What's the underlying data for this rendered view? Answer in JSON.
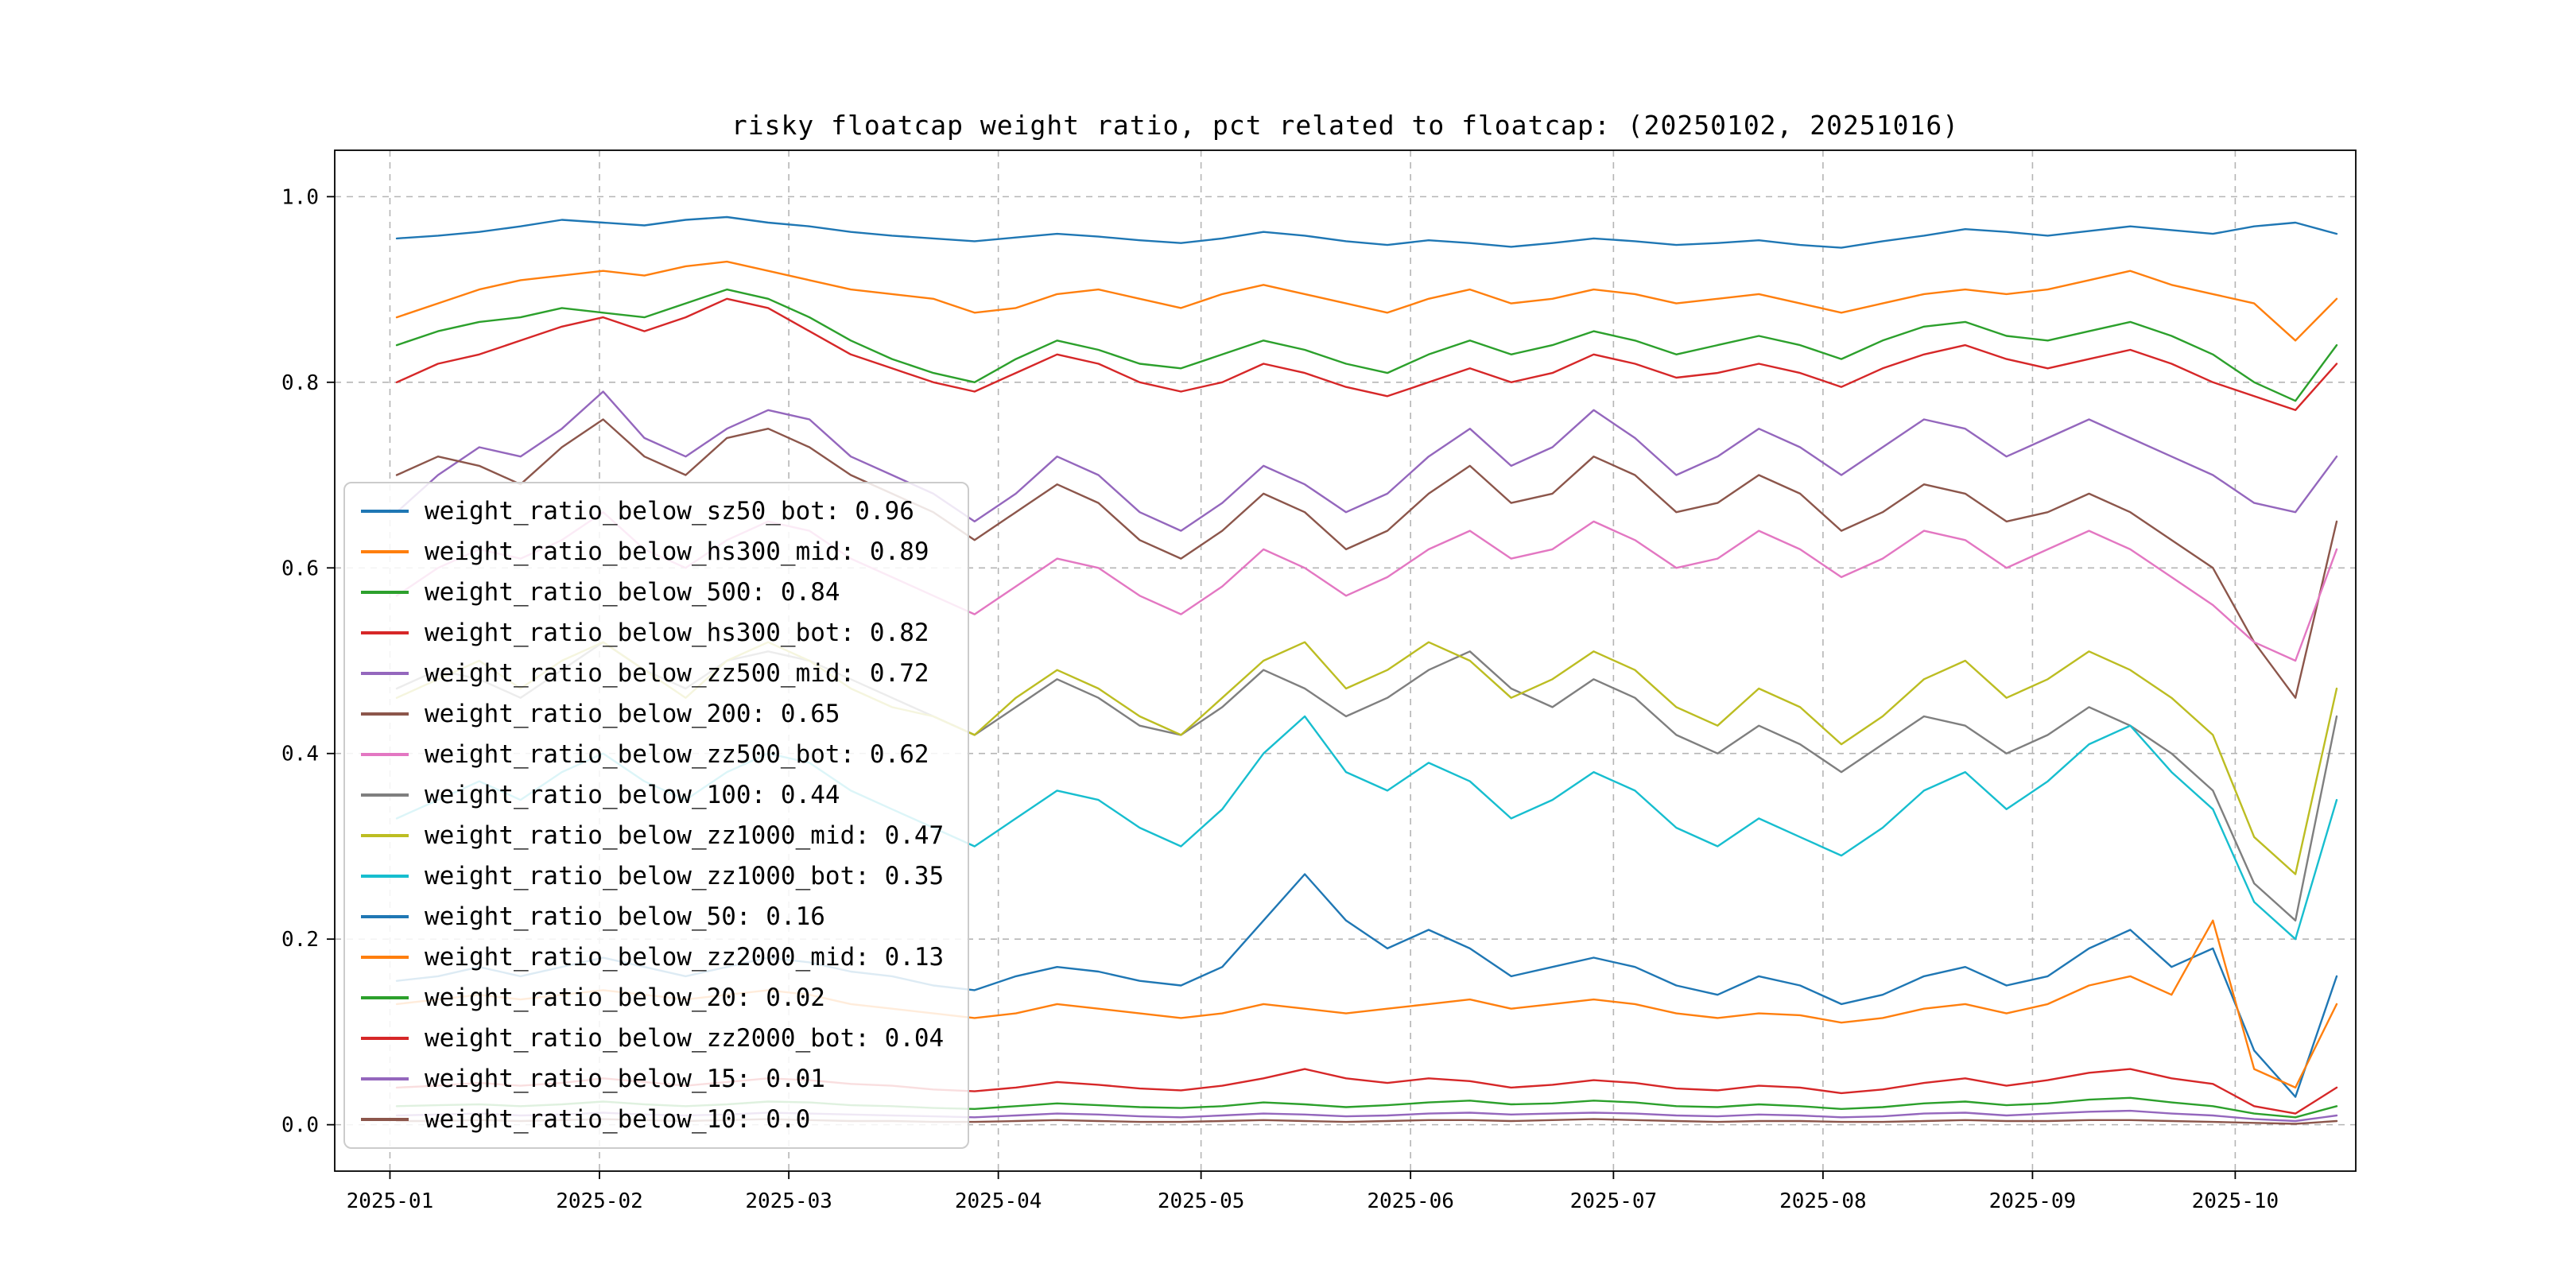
{
  "page": {
    "background": "#ffffff"
  },
  "chart_data": {
    "type": "line",
    "title": "risky floatcap weight ratio, pct related to floatcap: (20250102, 20251016)",
    "xlabel": "",
    "ylabel": "",
    "grid": true,
    "grid_style": "dashed",
    "grid_color": "#b5b5b5",
    "legend_position": "center-left",
    "ylim": [
      -0.05,
      1.05
    ],
    "yticks": [
      {
        "v": 0.0,
        "label": "0.0"
      },
      {
        "v": 0.2,
        "label": "0.2"
      },
      {
        "v": 0.4,
        "label": "0.4"
      },
      {
        "v": 0.6,
        "label": "0.6"
      },
      {
        "v": 0.8,
        "label": "0.8"
      },
      {
        "v": 1.0,
        "label": "1.0"
      }
    ],
    "xticks": [
      {
        "f": -0.0035,
        "label": "2025-01"
      },
      {
        "f": 0.1045,
        "label": "2025-02"
      },
      {
        "f": 0.2021,
        "label": "2025-03"
      },
      {
        "f": 0.3101,
        "label": "2025-04"
      },
      {
        "f": 0.4146,
        "label": "2025-05"
      },
      {
        "f": 0.5226,
        "label": "2025-06"
      },
      {
        "f": 0.6272,
        "label": "2025-07"
      },
      {
        "f": 0.7352,
        "label": "2025-08"
      },
      {
        "f": 0.8432,
        "label": "2025-09"
      },
      {
        "f": 0.9477,
        "label": "2025-10"
      }
    ],
    "date_range": [
      "20250102",
      "20251016"
    ],
    "series": [
      {
        "name": "weight_ratio_below_sz50_bot",
        "legend": "weight_ratio_below_sz50_bot: 0.96",
        "last_value": 0.96,
        "color": "#1f77b4",
        "values": [
          0.955,
          0.958,
          0.962,
          0.968,
          0.975,
          0.972,
          0.969,
          0.975,
          0.978,
          0.972,
          0.968,
          0.962,
          0.958,
          0.955,
          0.952,
          0.956,
          0.96,
          0.957,
          0.953,
          0.95,
          0.955,
          0.962,
          0.958,
          0.952,
          0.948,
          0.953,
          0.95,
          0.946,
          0.95,
          0.955,
          0.952,
          0.948,
          0.95,
          0.953,
          0.948,
          0.945,
          0.952,
          0.958,
          0.965,
          0.962,
          0.958,
          0.963,
          0.968,
          0.964,
          0.96,
          0.968,
          0.972,
          0.96
        ]
      },
      {
        "name": "weight_ratio_below_hs300_mid",
        "legend": "weight_ratio_below_hs300_mid: 0.89",
        "last_value": 0.89,
        "color": "#ff7f0e",
        "values": [
          0.87,
          0.885,
          0.9,
          0.91,
          0.915,
          0.92,
          0.915,
          0.925,
          0.93,
          0.92,
          0.91,
          0.9,
          0.895,
          0.89,
          0.875,
          0.88,
          0.895,
          0.9,
          0.89,
          0.88,
          0.895,
          0.905,
          0.895,
          0.885,
          0.875,
          0.89,
          0.9,
          0.885,
          0.89,
          0.9,
          0.895,
          0.885,
          0.89,
          0.895,
          0.885,
          0.875,
          0.885,
          0.895,
          0.9,
          0.895,
          0.9,
          0.91,
          0.92,
          0.905,
          0.895,
          0.885,
          0.845,
          0.89
        ]
      },
      {
        "name": "weight_ratio_below_500",
        "legend": "weight_ratio_below_500: 0.84",
        "last_value": 0.84,
        "color": "#2ca02c",
        "values": [
          0.84,
          0.855,
          0.865,
          0.87,
          0.88,
          0.875,
          0.87,
          0.885,
          0.9,
          0.89,
          0.87,
          0.845,
          0.825,
          0.81,
          0.8,
          0.825,
          0.845,
          0.835,
          0.82,
          0.815,
          0.83,
          0.845,
          0.835,
          0.82,
          0.81,
          0.83,
          0.845,
          0.83,
          0.84,
          0.855,
          0.845,
          0.83,
          0.84,
          0.85,
          0.84,
          0.825,
          0.845,
          0.86,
          0.865,
          0.85,
          0.845,
          0.855,
          0.865,
          0.85,
          0.83,
          0.8,
          0.78,
          0.84
        ]
      },
      {
        "name": "weight_ratio_below_hs300_bot",
        "legend": "weight_ratio_below_hs300_bot: 0.82",
        "last_value": 0.82,
        "color": "#d62728",
        "values": [
          0.8,
          0.82,
          0.83,
          0.845,
          0.86,
          0.87,
          0.855,
          0.87,
          0.89,
          0.88,
          0.855,
          0.83,
          0.815,
          0.8,
          0.79,
          0.81,
          0.83,
          0.82,
          0.8,
          0.79,
          0.8,
          0.82,
          0.81,
          0.795,
          0.785,
          0.8,
          0.815,
          0.8,
          0.81,
          0.83,
          0.82,
          0.805,
          0.81,
          0.82,
          0.81,
          0.795,
          0.815,
          0.83,
          0.84,
          0.825,
          0.815,
          0.825,
          0.835,
          0.82,
          0.8,
          0.785,
          0.77,
          0.82
        ]
      },
      {
        "name": "weight_ratio_below_zz500_mid",
        "legend": "weight_ratio_below_zz500_mid: 0.72",
        "last_value": 0.72,
        "color": "#9467bd",
        "values": [
          0.66,
          0.7,
          0.73,
          0.72,
          0.75,
          0.79,
          0.74,
          0.72,
          0.75,
          0.77,
          0.76,
          0.72,
          0.7,
          0.68,
          0.65,
          0.68,
          0.72,
          0.7,
          0.66,
          0.64,
          0.67,
          0.71,
          0.69,
          0.66,
          0.68,
          0.72,
          0.75,
          0.71,
          0.73,
          0.77,
          0.74,
          0.7,
          0.72,
          0.75,
          0.73,
          0.7,
          0.73,
          0.76,
          0.75,
          0.72,
          0.74,
          0.76,
          0.74,
          0.72,
          0.7,
          0.67,
          0.66,
          0.72
        ]
      },
      {
        "name": "weight_ratio_below_200",
        "legend": "weight_ratio_below_200: 0.65",
        "last_value": 0.65,
        "color": "#8c564b",
        "values": [
          0.7,
          0.72,
          0.71,
          0.69,
          0.73,
          0.76,
          0.72,
          0.7,
          0.74,
          0.75,
          0.73,
          0.7,
          0.68,
          0.66,
          0.63,
          0.66,
          0.69,
          0.67,
          0.63,
          0.61,
          0.64,
          0.68,
          0.66,
          0.62,
          0.64,
          0.68,
          0.71,
          0.67,
          0.68,
          0.72,
          0.7,
          0.66,
          0.67,
          0.7,
          0.68,
          0.64,
          0.66,
          0.69,
          0.68,
          0.65,
          0.66,
          0.68,
          0.66,
          0.63,
          0.6,
          0.52,
          0.46,
          0.65
        ]
      },
      {
        "name": "weight_ratio_below_zz500_bot",
        "legend": "weight_ratio_below_zz500_bot: 0.62",
        "last_value": 0.62,
        "color": "#e377c2",
        "values": [
          0.57,
          0.6,
          0.62,
          0.61,
          0.63,
          0.66,
          0.62,
          0.6,
          0.63,
          0.65,
          0.64,
          0.61,
          0.59,
          0.57,
          0.55,
          0.58,
          0.61,
          0.6,
          0.57,
          0.55,
          0.58,
          0.62,
          0.6,
          0.57,
          0.59,
          0.62,
          0.64,
          0.61,
          0.62,
          0.65,
          0.63,
          0.6,
          0.61,
          0.64,
          0.62,
          0.59,
          0.61,
          0.64,
          0.63,
          0.6,
          0.62,
          0.64,
          0.62,
          0.59,
          0.56,
          0.52,
          0.5,
          0.62
        ]
      },
      {
        "name": "weight_ratio_below_100",
        "legend": "weight_ratio_below_100: 0.44",
        "last_value": 0.44,
        "color": "#7f7f7f",
        "values": [
          0.47,
          0.49,
          0.48,
          0.46,
          0.49,
          0.52,
          0.49,
          0.47,
          0.5,
          0.51,
          0.5,
          0.48,
          0.46,
          0.44,
          0.42,
          0.45,
          0.48,
          0.46,
          0.43,
          0.42,
          0.45,
          0.49,
          0.47,
          0.44,
          0.46,
          0.49,
          0.51,
          0.47,
          0.45,
          0.48,
          0.46,
          0.42,
          0.4,
          0.43,
          0.41,
          0.38,
          0.41,
          0.44,
          0.43,
          0.4,
          0.42,
          0.45,
          0.43,
          0.4,
          0.36,
          0.26,
          0.22,
          0.44
        ]
      },
      {
        "name": "weight_ratio_below_zz1000_mid",
        "legend": "weight_ratio_below_zz1000_mid: 0.47",
        "last_value": 0.47,
        "color": "#bcbd22",
        "values": [
          0.46,
          0.48,
          0.5,
          0.47,
          0.5,
          0.52,
          0.49,
          0.46,
          0.5,
          0.52,
          0.5,
          0.47,
          0.45,
          0.44,
          0.42,
          0.46,
          0.49,
          0.47,
          0.44,
          0.42,
          0.46,
          0.5,
          0.52,
          0.47,
          0.49,
          0.52,
          0.5,
          0.46,
          0.48,
          0.51,
          0.49,
          0.45,
          0.43,
          0.47,
          0.45,
          0.41,
          0.44,
          0.48,
          0.5,
          0.46,
          0.48,
          0.51,
          0.49,
          0.46,
          0.42,
          0.31,
          0.27,
          0.47
        ]
      },
      {
        "name": "weight_ratio_below_zz1000_bot",
        "legend": "weight_ratio_below_zz1000_bot: 0.35",
        "last_value": 0.35,
        "color": "#17becf",
        "values": [
          0.33,
          0.35,
          0.37,
          0.35,
          0.38,
          0.4,
          0.37,
          0.35,
          0.38,
          0.4,
          0.39,
          0.36,
          0.34,
          0.32,
          0.3,
          0.33,
          0.36,
          0.35,
          0.32,
          0.3,
          0.34,
          0.4,
          0.44,
          0.38,
          0.36,
          0.39,
          0.37,
          0.33,
          0.35,
          0.38,
          0.36,
          0.32,
          0.3,
          0.33,
          0.31,
          0.29,
          0.32,
          0.36,
          0.38,
          0.34,
          0.37,
          0.41,
          0.43,
          0.38,
          0.34,
          0.24,
          0.2,
          0.35
        ]
      },
      {
        "name": "weight_ratio_below_50",
        "legend": "weight_ratio_below_50: 0.16",
        "last_value": 0.16,
        "color": "#1f77b4",
        "values": [
          0.155,
          0.16,
          0.17,
          0.16,
          0.17,
          0.18,
          0.17,
          0.16,
          0.17,
          0.18,
          0.175,
          0.165,
          0.16,
          0.15,
          0.145,
          0.16,
          0.17,
          0.165,
          0.155,
          0.15,
          0.17,
          0.22,
          0.27,
          0.22,
          0.19,
          0.21,
          0.19,
          0.16,
          0.17,
          0.18,
          0.17,
          0.15,
          0.14,
          0.16,
          0.15,
          0.13,
          0.14,
          0.16,
          0.17,
          0.15,
          0.16,
          0.19,
          0.21,
          0.17,
          0.19,
          0.08,
          0.03,
          0.16
        ]
      },
      {
        "name": "weight_ratio_below_zz2000_mid",
        "legend": "weight_ratio_below_zz2000_mid: 0.13",
        "last_value": 0.13,
        "color": "#ff7f0e",
        "values": [
          0.13,
          0.135,
          0.14,
          0.135,
          0.14,
          0.145,
          0.14,
          0.135,
          0.14,
          0.145,
          0.14,
          0.13,
          0.125,
          0.12,
          0.115,
          0.12,
          0.13,
          0.125,
          0.12,
          0.115,
          0.12,
          0.13,
          0.125,
          0.12,
          0.125,
          0.13,
          0.135,
          0.125,
          0.13,
          0.135,
          0.13,
          0.12,
          0.115,
          0.12,
          0.118,
          0.11,
          0.115,
          0.125,
          0.13,
          0.12,
          0.13,
          0.15,
          0.16,
          0.14,
          0.22,
          0.06,
          0.04,
          0.13
        ]
      },
      {
        "name": "weight_ratio_below_20",
        "legend": "weight_ratio_below_20: 0.02",
        "last_value": 0.02,
        "color": "#2ca02c",
        "values": [
          0.02,
          0.021,
          0.022,
          0.02,
          0.022,
          0.025,
          0.022,
          0.02,
          0.022,
          0.025,
          0.024,
          0.021,
          0.02,
          0.018,
          0.017,
          0.02,
          0.023,
          0.021,
          0.019,
          0.018,
          0.02,
          0.024,
          0.022,
          0.019,
          0.021,
          0.024,
          0.026,
          0.022,
          0.023,
          0.026,
          0.024,
          0.02,
          0.019,
          0.022,
          0.02,
          0.017,
          0.019,
          0.023,
          0.025,
          0.021,
          0.023,
          0.027,
          0.029,
          0.024,
          0.02,
          0.012,
          0.008,
          0.02
        ]
      },
      {
        "name": "weight_ratio_below_zz2000_bot",
        "legend": "weight_ratio_below_zz2000_bot: 0.04",
        "last_value": 0.04,
        "color": "#d62728",
        "values": [
          0.04,
          0.042,
          0.045,
          0.042,
          0.045,
          0.05,
          0.046,
          0.042,
          0.046,
          0.05,
          0.048,
          0.044,
          0.042,
          0.038,
          0.036,
          0.04,
          0.046,
          0.043,
          0.039,
          0.037,
          0.042,
          0.05,
          0.06,
          0.05,
          0.045,
          0.05,
          0.047,
          0.04,
          0.043,
          0.048,
          0.045,
          0.039,
          0.037,
          0.042,
          0.04,
          0.034,
          0.038,
          0.045,
          0.05,
          0.042,
          0.048,
          0.056,
          0.06,
          0.05,
          0.044,
          0.02,
          0.012,
          0.04
        ]
      },
      {
        "name": "weight_ratio_below_15",
        "legend": "weight_ratio_below_15: 0.01",
        "last_value": 0.01,
        "color": "#9467bd",
        "values": [
          0.01,
          0.011,
          0.012,
          0.01,
          0.011,
          0.013,
          0.011,
          0.01,
          0.011,
          0.013,
          0.012,
          0.011,
          0.01,
          0.009,
          0.008,
          0.01,
          0.012,
          0.011,
          0.009,
          0.008,
          0.01,
          0.012,
          0.011,
          0.009,
          0.01,
          0.012,
          0.013,
          0.011,
          0.012,
          0.013,
          0.012,
          0.01,
          0.009,
          0.011,
          0.01,
          0.008,
          0.009,
          0.012,
          0.013,
          0.01,
          0.012,
          0.014,
          0.015,
          0.012,
          0.01,
          0.006,
          0.004,
          0.01
        ]
      },
      {
        "name": "weight_ratio_below_10",
        "legend": "weight_ratio_below_10: 0.0",
        "last_value": 0.0,
        "color": "#8c564b",
        "values": [
          0.004,
          0.004,
          0.005,
          0.004,
          0.005,
          0.006,
          0.005,
          0.004,
          0.005,
          0.006,
          0.005,
          0.004,
          0.004,
          0.003,
          0.003,
          0.004,
          0.005,
          0.004,
          0.003,
          0.003,
          0.004,
          0.005,
          0.004,
          0.003,
          0.004,
          0.005,
          0.005,
          0.004,
          0.005,
          0.006,
          0.005,
          0.004,
          0.003,
          0.004,
          0.004,
          0.003,
          0.003,
          0.004,
          0.005,
          0.004,
          0.004,
          0.005,
          0.005,
          0.004,
          0.003,
          0.002,
          0.001,
          0.004
        ]
      }
    ]
  }
}
